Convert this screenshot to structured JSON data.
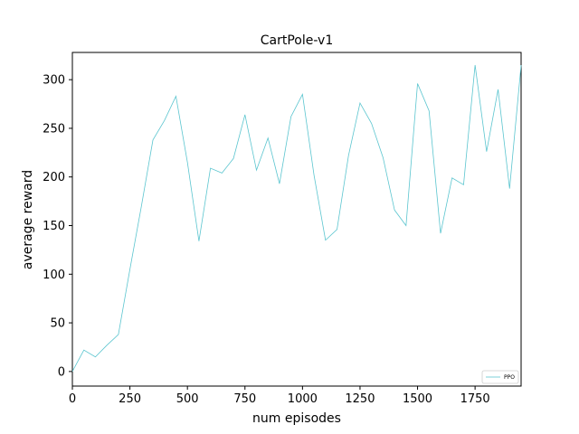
{
  "chart_data": {
    "type": "line",
    "title": "CartPole-v1",
    "xlabel": "num episodes",
    "ylabel": "average reward",
    "xlim": [
      0,
      1950
    ],
    "ylim": [
      -15,
      328
    ],
    "xticks": [
      0,
      250,
      500,
      750,
      1000,
      1250,
      1500,
      1750
    ],
    "yticks": [
      0,
      50,
      100,
      150,
      200,
      250,
      300
    ],
    "grid": false,
    "legend_position": "lower-right",
    "series": [
      {
        "name": "PPO",
        "color": "#5bc5cf",
        "x": [
          0,
          50,
          100,
          150,
          200,
          250,
          300,
          350,
          400,
          450,
          500,
          550,
          600,
          650,
          700,
          750,
          800,
          850,
          900,
          950,
          1000,
          1050,
          1100,
          1150,
          1200,
          1250,
          1300,
          1350,
          1400,
          1450,
          1500,
          1550,
          1600,
          1650,
          1700,
          1750,
          1800,
          1850,
          1900,
          1950
        ],
        "y": [
          0,
          22,
          15,
          27,
          38,
          105,
          170,
          238,
          258,
          283,
          215,
          134,
          209,
          204,
          219,
          264,
          207,
          240,
          193,
          262,
          285,
          202,
          135,
          146,
          222,
          276,
          255,
          220,
          166,
          150,
          296,
          268,
          142,
          199,
          192,
          315,
          226,
          290,
          188,
          315
        ]
      }
    ]
  }
}
